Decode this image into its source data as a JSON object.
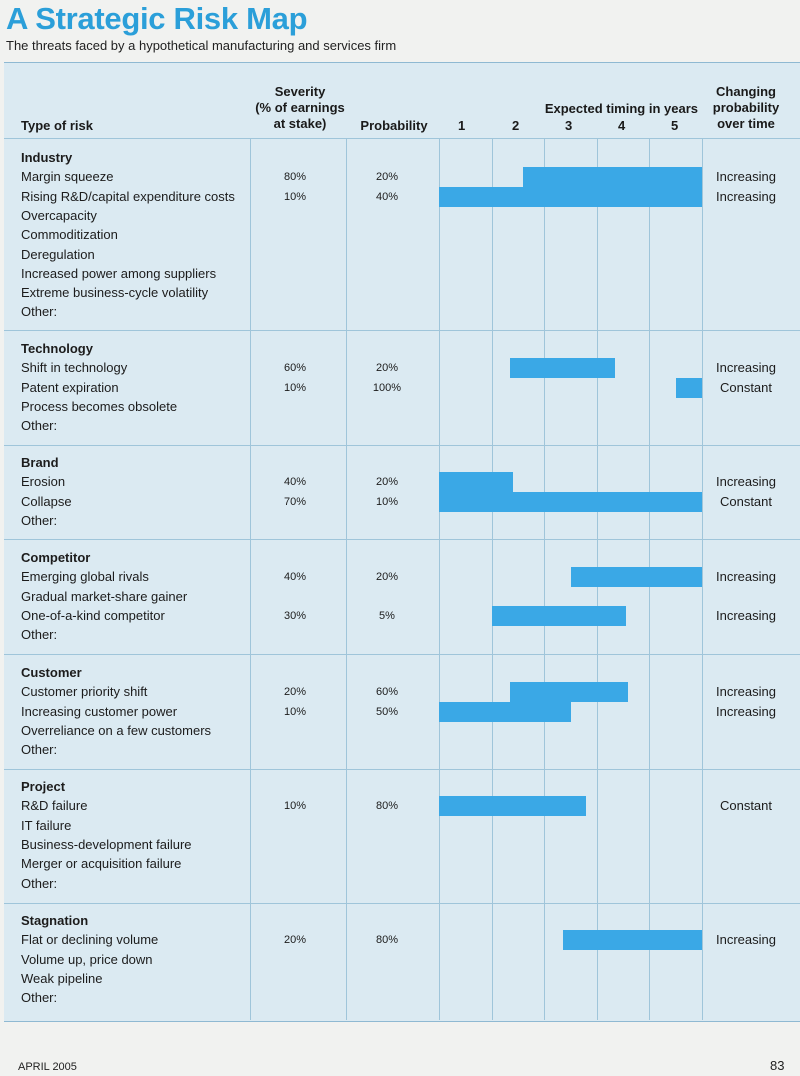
{
  "title": "A Strategic Risk Map",
  "subtitle": "The threats faced by a hypothetical manufacturing and services firm",
  "headers": {
    "type": "Type of risk",
    "severity": [
      "Severity",
      "(% of earnings",
      "at stake)"
    ],
    "probability": "Probability",
    "timing": "Expected timing in years",
    "years": [
      "1",
      "2",
      "3",
      "4",
      "5"
    ],
    "changing": [
      "Changing",
      "probability",
      "over time"
    ]
  },
  "sections": [
    {
      "name": "Industry",
      "items": [
        {
          "label": "Margin squeeze",
          "severity": "80%",
          "probability": "20%",
          "start_year": 2.1,
          "end_year": 5.5,
          "change": "Increasing"
        },
        {
          "label": "Rising R&D/capital expenditure costs",
          "severity": "10%",
          "probability": "40%",
          "start_year": 0.5,
          "end_year": 5.5,
          "change": "Increasing"
        },
        {
          "label": "Overcapacity"
        },
        {
          "label": "Commoditization"
        },
        {
          "label": "Deregulation"
        },
        {
          "label": "Increased power among suppliers"
        },
        {
          "label": "Extreme business-cycle volatility"
        },
        {
          "label": "Other:"
        }
      ]
    },
    {
      "name": "Technology",
      "items": [
        {
          "label": "Shift in technology",
          "severity": "60%",
          "probability": "20%",
          "start_year": 1.85,
          "end_year": 3.85,
          "change": "Increasing"
        },
        {
          "label": "Patent expiration",
          "severity": "10%",
          "probability": "100%",
          "start_year": 5.0,
          "end_year": 5.5,
          "change": "Constant"
        },
        {
          "label": "Process becomes obsolete"
        },
        {
          "label": "Other:"
        }
      ]
    },
    {
      "name": "Brand",
      "items": [
        {
          "label": "Erosion",
          "severity": "40%",
          "probability": "20%",
          "start_year": 0.5,
          "end_year": 1.9,
          "change": "Increasing"
        },
        {
          "label": "Collapse",
          "severity": "70%",
          "probability": "10%",
          "start_year": 0.5,
          "end_year": 5.5,
          "change": "Constant"
        },
        {
          "label": "Other:"
        }
      ]
    },
    {
      "name": "Competitor",
      "items": [
        {
          "label": "Emerging global rivals",
          "severity": "40%",
          "probability": "20%",
          "start_year": 3.0,
          "end_year": 5.5,
          "change": "Increasing"
        },
        {
          "label": "Gradual market-share gainer"
        },
        {
          "label": "One-of-a-kind competitor",
          "severity": "30%",
          "probability": "5%",
          "start_year": 1.5,
          "end_year": 4.05,
          "change": "Increasing"
        },
        {
          "label": "Other:"
        }
      ]
    },
    {
      "name": "Customer",
      "items": [
        {
          "label": "Customer priority shift",
          "severity": "20%",
          "probability": "60%",
          "start_year": 1.85,
          "end_year": 4.1,
          "change": "Increasing"
        },
        {
          "label": "Increasing customer power",
          "severity": "10%",
          "probability": "50%",
          "start_year": 0.5,
          "end_year": 3.0,
          "change": "Increasing"
        },
        {
          "label": "Overreliance on a few customers"
        },
        {
          "label": "Other:"
        }
      ]
    },
    {
      "name": "Project",
      "items": [
        {
          "label": "R&D failure",
          "severity": "10%",
          "probability": "80%",
          "start_year": 0.5,
          "end_year": 3.3,
          "change": "Constant"
        },
        {
          "label": "IT failure"
        },
        {
          "label": "Business-development failure"
        },
        {
          "label": "Merger or acquisition failure"
        },
        {
          "label": "Other:"
        }
      ]
    },
    {
      "name": "Stagnation",
      "items": [
        {
          "label": "Flat or declining volume",
          "severity": "20%",
          "probability": "80%",
          "start_year": 2.85,
          "end_year": 5.5,
          "change": "Increasing"
        },
        {
          "label": "Volume up, price down"
        },
        {
          "label": "Weak pipeline"
        },
        {
          "label": "Other:"
        }
      ]
    }
  ],
  "footer": {
    "left": "APRIL 2005",
    "right": "83"
  }
}
